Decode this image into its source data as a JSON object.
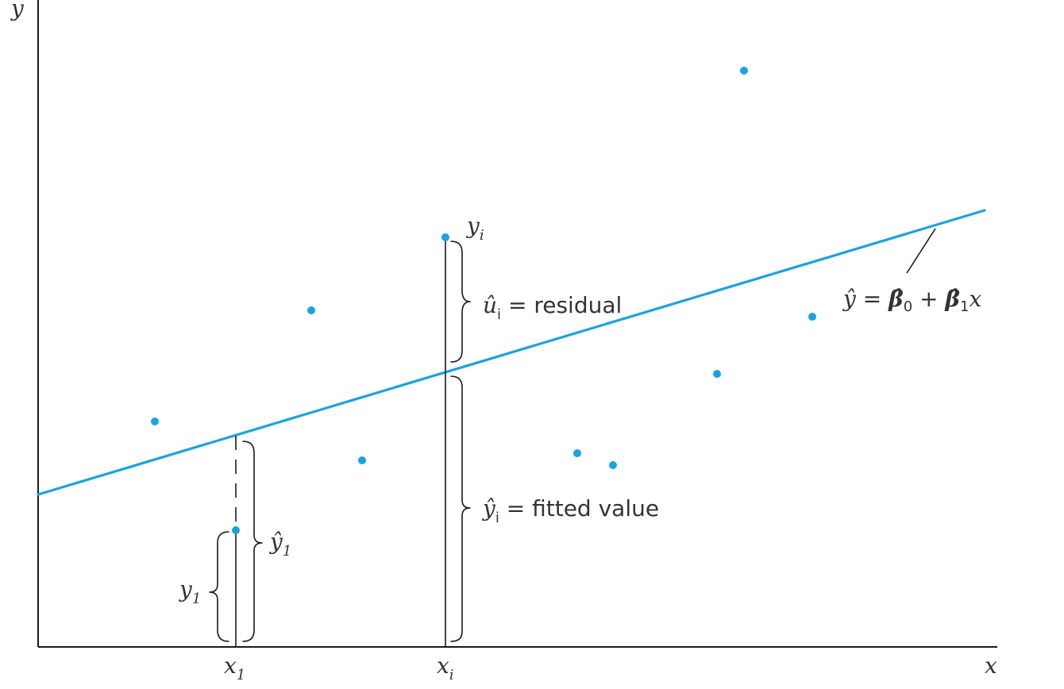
{
  "axes": {
    "y_label": "y",
    "x_label": "x",
    "x1_label": "x",
    "x1_sub": "1",
    "xi_label": "x",
    "xi_sub": "i"
  },
  "annotations": {
    "yi_label": "y",
    "yi_sub": "i",
    "residual_sym": "û",
    "residual_sub": "i",
    "residual_text": " = residual",
    "fitted_sym": "ŷ",
    "fitted_sub": "i",
    "fitted_text": " = fitted value",
    "y1_label": "y",
    "y1_sub": "1",
    "y1hat_label": "ŷ",
    "y1hat_sub": "1",
    "equation": {
      "lhs": "ŷ = ",
      "b0": "β̂",
      "b0_sub": "0",
      "plus": " + ",
      "b1": "β̂",
      "b1_sub": "1",
      "var": "x"
    }
  },
  "colors": {
    "accent": "#1aa3e0",
    "ink": "#1a1a1a",
    "text": "#333333"
  }
}
